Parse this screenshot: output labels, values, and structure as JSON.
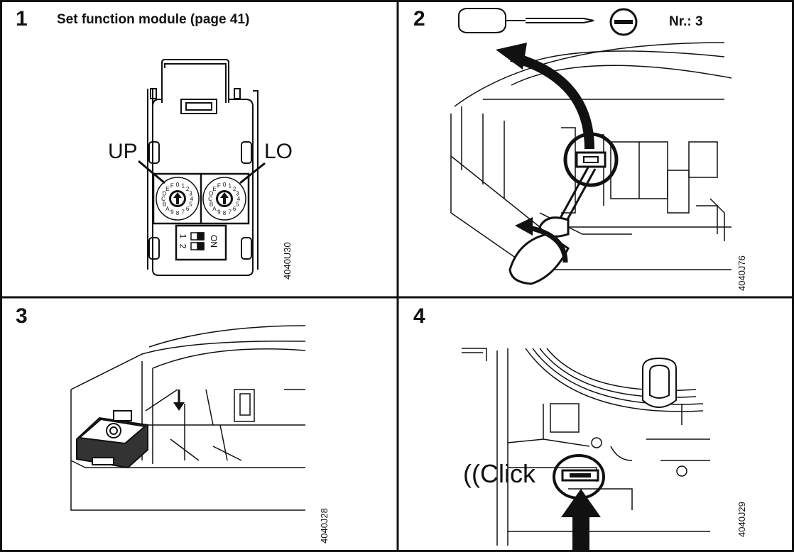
{
  "panels": [
    {
      "number": "1",
      "title": "Set function module (page 41)",
      "label_up": "UP",
      "label_lo": "LO",
      "dial_chars": "0123456789ABCDEF",
      "switch_numbers": [
        "1",
        "2"
      ],
      "switch_on": "ON",
      "code": "4040U30"
    },
    {
      "number": "2",
      "nr_label": "Nr.: 3",
      "tool": "flat-screwdriver",
      "code": "4040J76"
    },
    {
      "number": "3",
      "code": "4040J28"
    },
    {
      "number": "4",
      "click_text": "((Click",
      "code": "4040J29"
    }
  ],
  "colors": {
    "line": "#111111",
    "background": "#ffffff"
  }
}
